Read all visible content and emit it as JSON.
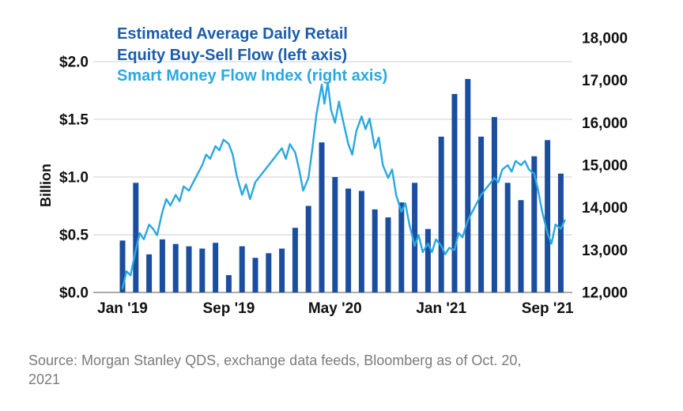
{
  "title": {
    "line1": "Estimated Average Daily Retail",
    "line2": "Equity Buy-Sell Flow (left axis)",
    "line3": "Smart Money Flow Index (right axis)"
  },
  "source": "Source: Morgan Stanley QDS, exchange data feeds, Bloomberg as of Oct. 20, 2021",
  "colors": {
    "bar": "#1b4e9e",
    "line": "#29a8e0",
    "title_dark": "#1a5dab",
    "title_light": "#29a8e0",
    "grid": "#cfcfcf",
    "baseline": "#8f8f8f",
    "axis_text": "#111111",
    "source_text": "#7b7b7b"
  },
  "chart_data": {
    "type": "combo",
    "subtype": [
      "bar",
      "line"
    ],
    "title": "Estimated Average Daily Retail Equity Buy-Sell Flow (left axis) / Smart Money Flow Index (right axis)",
    "left_axis": {
      "label": "Billion",
      "unit": "$ billion",
      "min": 0,
      "max": 2.0,
      "tick_values": [
        0,
        0.5,
        1.0,
        1.5,
        2.0
      ],
      "tick_labels": [
        "$0.0",
        "$0.5",
        "$1.0",
        "$1.5",
        "$2.0"
      ]
    },
    "right_axis": {
      "label": "Smart Money Flow Index",
      "min": 12000,
      "max": 18000,
      "tick_values": [
        12000,
        13000,
        14000,
        15000,
        16000,
        17000,
        18000
      ],
      "tick_labels": [
        "12,000",
        "13,000",
        "14,000",
        "15,000",
        "16,000",
        "17,000",
        "18,000"
      ]
    },
    "x_axis": {
      "tick_labels": [
        "Jan '19",
        "Sep '19",
        "May '20",
        "Jan '21",
        "Sep '21"
      ],
      "tick_month_index": [
        0,
        8,
        16,
        24,
        32
      ]
    },
    "bars": {
      "name": "Estimated Average Daily Retail Equity Buy-Sell Flow",
      "axis": "left",
      "months": [
        "Jan '19",
        "Feb '19",
        "Mar '19",
        "Apr '19",
        "May '19",
        "Jun '19",
        "Jul '19",
        "Aug '19",
        "Sep '19",
        "Oct '19",
        "Nov '19",
        "Dec '19",
        "Jan '20",
        "Feb '20",
        "Mar '20",
        "Apr '20",
        "May '20",
        "Jun '20",
        "Jul '20",
        "Aug '20",
        "Sep '20",
        "Oct '20",
        "Nov '20",
        "Dec '20",
        "Jan '21",
        "Feb '21",
        "Mar '21",
        "Apr '21",
        "May '21",
        "Jun '21",
        "Jul '21",
        "Aug '21",
        "Sep '21",
        "Oct '21"
      ],
      "values": [
        0.45,
        0.95,
        0.33,
        0.46,
        0.42,
        0.4,
        0.38,
        0.43,
        0.15,
        0.4,
        0.3,
        0.34,
        0.38,
        0.56,
        0.75,
        1.3,
        1.0,
        0.9,
        0.88,
        0.72,
        0.65,
        0.78,
        0.95,
        0.55,
        1.35,
        1.72,
        1.85,
        1.35,
        1.52,
        0.95,
        0.8,
        1.18,
        1.32,
        1.03
      ]
    },
    "line": {
      "name": "Smart Money Flow Index",
      "axis": "right",
      "points": [
        [
          0,
          12100
        ],
        [
          0.3,
          12500
        ],
        [
          0.6,
          12400
        ],
        [
          1,
          13000
        ],
        [
          1.3,
          13400
        ],
        [
          1.6,
          13250
        ],
        [
          2,
          13600
        ],
        [
          2.3,
          13500
        ],
        [
          2.6,
          13350
        ],
        [
          3,
          13900
        ],
        [
          3.3,
          14200
        ],
        [
          3.6,
          14050
        ],
        [
          4,
          14300
        ],
        [
          4.3,
          14150
        ],
        [
          4.6,
          14500
        ],
        [
          5,
          14400
        ],
        [
          5.5,
          14700
        ],
        [
          6,
          15000
        ],
        [
          6.3,
          15250
        ],
        [
          6.6,
          15150
        ],
        [
          7,
          15450
        ],
        [
          7.3,
          15350
        ],
        [
          7.6,
          15600
        ],
        [
          8,
          15500
        ],
        [
          8.3,
          15250
        ],
        [
          8.6,
          14750
        ],
        [
          9,
          14300
        ],
        [
          9.3,
          14550
        ],
        [
          9.6,
          14200
        ],
        [
          10,
          14600
        ],
        [
          10.5,
          14800
        ],
        [
          11,
          15000
        ],
        [
          11.5,
          15200
        ],
        [
          12,
          15400
        ],
        [
          12.3,
          15150
        ],
        [
          12.6,
          15500
        ],
        [
          13,
          15300
        ],
        [
          13.3,
          14900
        ],
        [
          13.6,
          14400
        ],
        [
          14,
          14700
        ],
        [
          14.3,
          15400
        ],
        [
          14.6,
          16200
        ],
        [
          15,
          16900
        ],
        [
          15.2,
          16450
        ],
        [
          15.45,
          16950
        ],
        [
          15.7,
          16300
        ],
        [
          16,
          16000
        ],
        [
          16.3,
          16500
        ],
        [
          16.6,
          16050
        ],
        [
          17,
          15500
        ],
        [
          17.3,
          15250
        ],
        [
          17.6,
          15800
        ],
        [
          18,
          16150
        ],
        [
          18.3,
          15850
        ],
        [
          18.6,
          16100
        ],
        [
          19,
          15400
        ],
        [
          19.3,
          15650
        ],
        [
          19.6,
          15000
        ],
        [
          20,
          14700
        ],
        [
          20.3,
          14900
        ],
        [
          20.6,
          14300
        ],
        [
          21,
          13900
        ],
        [
          21.3,
          14100
        ],
        [
          21.6,
          13600
        ],
        [
          22,
          13100
        ],
        [
          22.3,
          13350
        ],
        [
          22.6,
          12950
        ],
        [
          23,
          13150
        ],
        [
          23.3,
          12950
        ],
        [
          23.6,
          13250
        ],
        [
          24,
          13100
        ],
        [
          24.3,
          12900
        ],
        [
          24.6,
          13050
        ],
        [
          25,
          13000
        ],
        [
          25.3,
          13400
        ],
        [
          25.6,
          13300
        ],
        [
          26,
          13700
        ],
        [
          26.5,
          14000
        ],
        [
          27,
          14300
        ],
        [
          27.5,
          14500
        ],
        [
          28,
          14700
        ],
        [
          28.3,
          14600
        ],
        [
          28.6,
          14900
        ],
        [
          29,
          15000
        ],
        [
          29.3,
          14850
        ],
        [
          29.6,
          15100
        ],
        [
          30,
          15000
        ],
        [
          30.3,
          15100
        ],
        [
          30.6,
          14900
        ],
        [
          31,
          14800
        ],
        [
          31.3,
          14400
        ],
        [
          31.6,
          13900
        ],
        [
          32,
          13400
        ],
        [
          32.3,
          13150
        ],
        [
          32.6,
          13600
        ],
        [
          33,
          13500
        ],
        [
          33.3,
          13700
        ]
      ]
    }
  }
}
